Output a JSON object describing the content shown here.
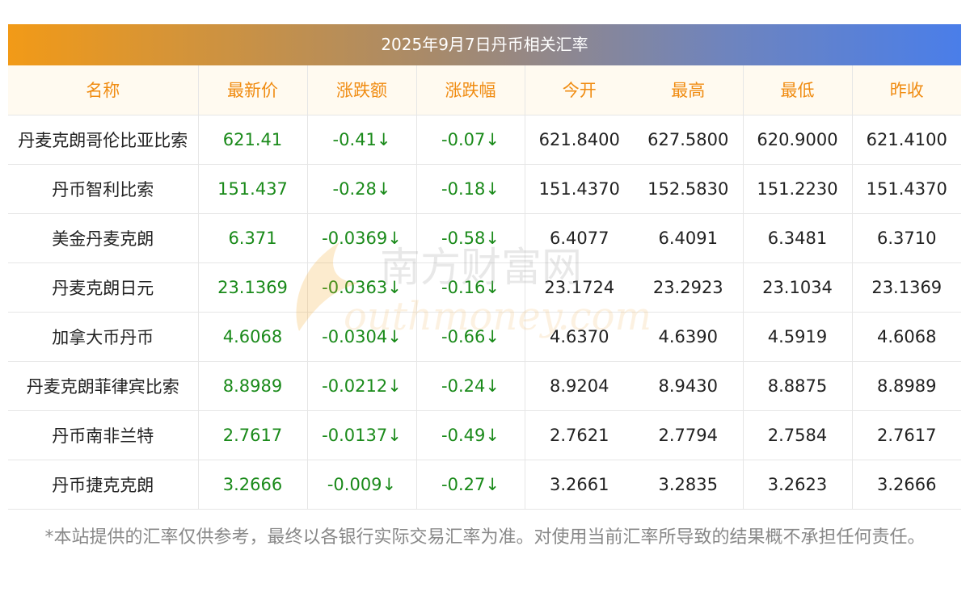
{
  "title": "2025年9月7日丹币相关汇率",
  "columns": [
    "名称",
    "最新价",
    "涨跌额",
    "涨跌幅",
    "今开",
    "最高",
    "最低",
    "昨收"
  ],
  "rows": [
    {
      "name": "丹麦克朗哥伦比亚比索",
      "latest": "621.41",
      "change": "-0.41↓",
      "pct": "-0.07↓",
      "open": "621.8400",
      "high": "627.5800",
      "low": "620.9000",
      "prev": "621.4100"
    },
    {
      "name": "丹币智利比索",
      "latest": "151.437",
      "change": "-0.28↓",
      "pct": "-0.18↓",
      "open": "151.4370",
      "high": "152.5830",
      "low": "151.2230",
      "prev": "151.4370"
    },
    {
      "name": "美金丹麦克朗",
      "latest": "6.371",
      "change": "-0.0369↓",
      "pct": "-0.58↓",
      "open": "6.4077",
      "high": "6.4091",
      "low": "6.3481",
      "prev": "6.3710"
    },
    {
      "name": "丹麦克朗日元",
      "latest": "23.1369",
      "change": "-0.0363↓",
      "pct": "-0.16↓",
      "open": "23.1724",
      "high": "23.2923",
      "low": "23.1034",
      "prev": "23.1369"
    },
    {
      "name": "加拿大币丹币",
      "latest": "4.6068",
      "change": "-0.0304↓",
      "pct": "-0.66↓",
      "open": "4.6370",
      "high": "4.6390",
      "low": "4.5919",
      "prev": "4.6068"
    },
    {
      "name": "丹麦克朗菲律宾比索",
      "latest": "8.8989",
      "change": "-0.0212↓",
      "pct": "-0.24↓",
      "open": "8.9204",
      "high": "8.9430",
      "low": "8.8875",
      "prev": "8.8989"
    },
    {
      "name": "丹币南非兰特",
      "latest": "2.7617",
      "change": "-0.0137↓",
      "pct": "-0.49↓",
      "open": "2.7621",
      "high": "2.7794",
      "low": "2.7584",
      "prev": "2.7617"
    },
    {
      "name": "丹币捷克克朗",
      "latest": "3.2666",
      "change": "-0.009↓",
      "pct": "-0.27↓",
      "open": "3.2661",
      "high": "3.2835",
      "low": "3.2623",
      "prev": "3.2666"
    }
  ],
  "watermark": {
    "cn": "南方财富网",
    "en": "outhmoney.com"
  },
  "disclaimer": "*本站提供的汇率仅供参考，最终以各银行实际交易汇率为准。对使用当前汇率所导致的结果概不承担任何责任。",
  "colors": {
    "header_text": "#f08c12",
    "down": "#1a8a1a",
    "gradient_start": "#f29a17",
    "gradient_end": "#4a7ee9"
  }
}
